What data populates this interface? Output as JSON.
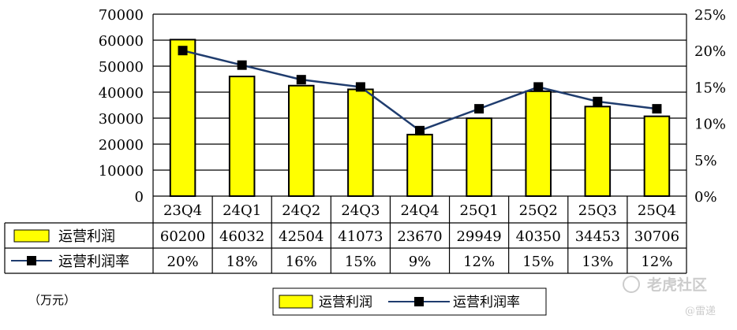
{
  "unit_note": "（万元）",
  "watermark": {
    "brand": "老虎社区",
    "author": "@雷递"
  },
  "colors": {
    "bar_fill": "#ffff00",
    "bar_stroke": "#000000",
    "line": "#1f3c6e",
    "marker": "#000000",
    "grid": "#000000"
  },
  "chart_data": {
    "type": "bar",
    "categories": [
      "23Q4",
      "24Q1",
      "24Q2",
      "24Q3",
      "24Q4",
      "25Q1",
      "25Q2",
      "25Q3",
      "25Q4"
    ],
    "series": [
      {
        "name": "运营利润",
        "type": "bar",
        "axis": "left",
        "values": [
          60200,
          46032,
          42504,
          41073,
          23670,
          29949,
          40350,
          34453,
          30706
        ]
      },
      {
        "name": "运营利润率",
        "type": "line",
        "axis": "right",
        "values": [
          20,
          18,
          16,
          15,
          9,
          12,
          15,
          13,
          12
        ],
        "display_values": [
          "20%",
          "18%",
          "16%",
          "15%",
          "9%",
          "12%",
          "15%",
          "13%",
          "12%"
        ]
      }
    ],
    "ylim": [
      0,
      70000
    ],
    "yticks": [
      "0",
      "10000",
      "20000",
      "30000",
      "40000",
      "50000",
      "60000",
      "70000"
    ],
    "y2lim": [
      0,
      25
    ],
    "y2ticks": [
      "0%",
      "5%",
      "10%",
      "15%",
      "20%",
      "25%"
    ],
    "grid": true,
    "data_table": true,
    "legend": "bottom"
  }
}
